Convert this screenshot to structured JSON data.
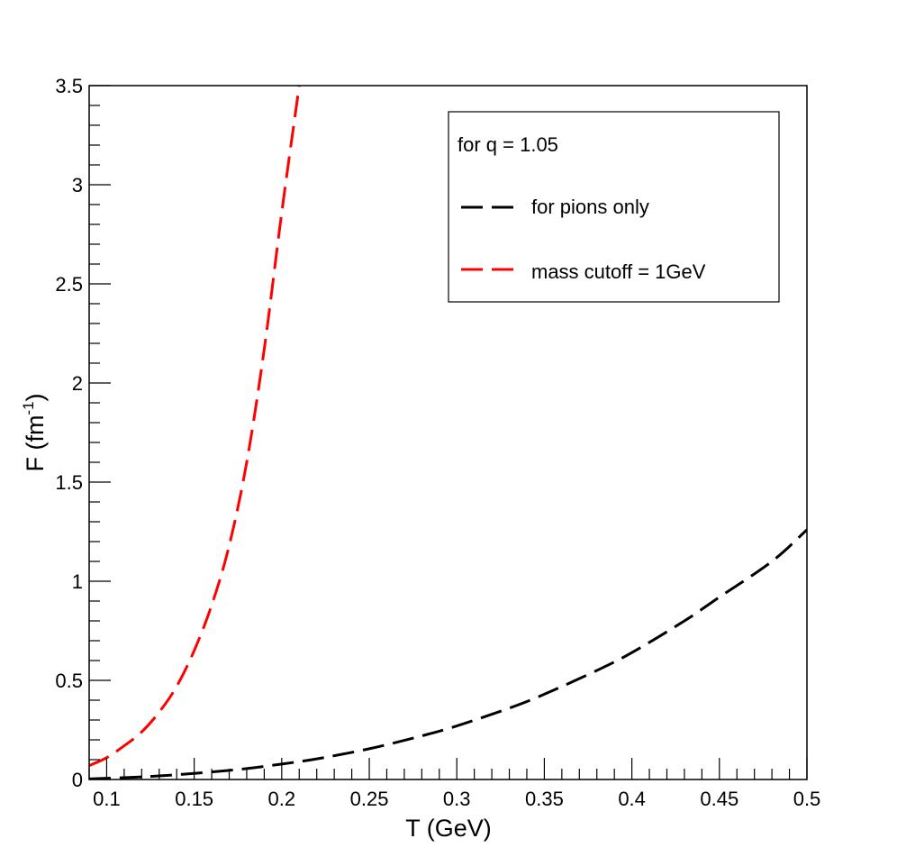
{
  "chart_data": {
    "type": "line",
    "title": "",
    "xlabel": "T (GeV)",
    "ylabel": "F (fm",
    "ylabel_superscript": "-1",
    "ylabel_close": ")",
    "xlim": [
      0.09,
      0.5
    ],
    "ylim": [
      0,
      3.5
    ],
    "x_ticks": [
      0.1,
      0.15,
      0.2,
      0.25,
      0.3,
      0.35,
      0.4,
      0.45,
      0.5
    ],
    "x_tick_labels": [
      "0.1",
      "0.15",
      "0.2",
      "0.25",
      "0.3",
      "0.35",
      "0.4",
      "0.45",
      "0.5"
    ],
    "y_ticks": [
      0,
      0.5,
      1,
      1.5,
      2,
      2.5,
      3,
      3.5
    ],
    "y_tick_labels": [
      "0",
      "0.5",
      "1",
      "1.5",
      "2",
      "2.5",
      "3",
      "3.5"
    ],
    "legend": {
      "header": "for q = 1.05",
      "position": "top-right"
    },
    "series": [
      {
        "name": "for pions only",
        "color": "#000000",
        "style": "dashed",
        "x": [
          0.09,
          0.1,
          0.12,
          0.14,
          0.16,
          0.18,
          0.2,
          0.22,
          0.25,
          0.28,
          0.3,
          0.33,
          0.35,
          0.38,
          0.4,
          0.43,
          0.45,
          0.48,
          0.5
        ],
        "y": [
          0.003,
          0.006,
          0.013,
          0.024,
          0.038,
          0.055,
          0.078,
          0.104,
          0.155,
          0.22,
          0.27,
          0.36,
          0.43,
          0.55,
          0.64,
          0.8,
          0.92,
          1.1,
          1.26
        ]
      },
      {
        "name": "mass cutoff = 1GeV",
        "color": "#ff0000",
        "style": "dashed",
        "x": [
          0.09,
          0.1,
          0.11,
          0.12,
          0.13,
          0.14,
          0.15,
          0.16,
          0.17,
          0.18,
          0.19,
          0.2,
          0.21
        ],
        "y": [
          0.07,
          0.11,
          0.17,
          0.24,
          0.34,
          0.47,
          0.65,
          0.88,
          1.18,
          1.6,
          2.17,
          2.86,
          3.5
        ]
      }
    ]
  }
}
